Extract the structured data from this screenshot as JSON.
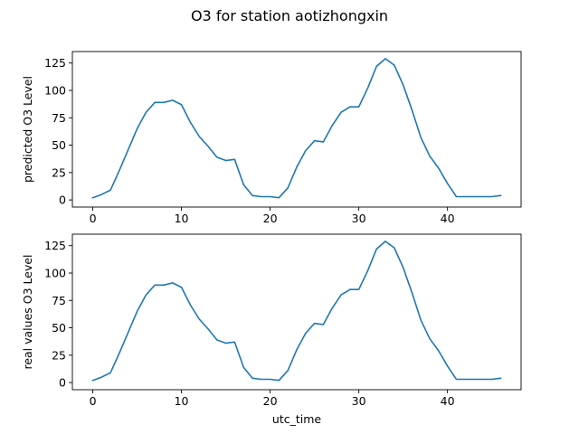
{
  "figure_title": "O3 for station aotizhongxin",
  "chart_data": [
    {
      "type": "line",
      "title": "",
      "xlabel": "",
      "ylabel": "predicted O3 Level",
      "xlim": [
        -2.3,
        48.3
      ],
      "ylim": [
        -6.5,
        135.5
      ],
      "xticks": [
        0,
        10,
        20,
        30,
        40
      ],
      "yticks": [
        0,
        25,
        50,
        75,
        100,
        125
      ],
      "grid": false,
      "line_color": "#1f77b4",
      "series": [
        {
          "x": [
            0,
            1,
            2,
            3,
            4,
            5,
            6,
            7,
            8,
            9,
            10,
            11,
            12,
            13,
            14,
            15,
            16,
            17,
            18,
            19,
            20,
            21,
            22,
            23,
            24,
            25,
            26,
            27,
            28,
            29,
            30,
            31,
            32,
            33,
            34,
            35,
            36,
            37,
            38,
            39,
            40,
            41,
            42,
            43,
            44,
            45,
            46
          ],
          "values": [
            2,
            5,
            9,
            27,
            46,
            65,
            80,
            89,
            89,
            91,
            87,
            71,
            58,
            49,
            39,
            36,
            37,
            14,
            4,
            3,
            3,
            2,
            11,
            30,
            45,
            54,
            53,
            68,
            80,
            85,
            85,
            102,
            122,
            129,
            123,
            105,
            82,
            57,
            40,
            29,
            15,
            3,
            3,
            3,
            3,
            3,
            4
          ]
        }
      ]
    },
    {
      "type": "line",
      "title": "",
      "xlabel": "utc_time",
      "ylabel": "real values O3 Level",
      "xlim": [
        -2.3,
        48.3
      ],
      "ylim": [
        -6.5,
        135.5
      ],
      "xticks": [
        0,
        10,
        20,
        30,
        40
      ],
      "yticks": [
        0,
        25,
        50,
        75,
        100,
        125
      ],
      "grid": false,
      "line_color": "#1f77b4",
      "series": [
        {
          "x": [
            0,
            1,
            2,
            3,
            4,
            5,
            6,
            7,
            8,
            9,
            10,
            11,
            12,
            13,
            14,
            15,
            16,
            17,
            18,
            19,
            20,
            21,
            22,
            23,
            24,
            25,
            26,
            27,
            28,
            29,
            30,
            31,
            32,
            33,
            34,
            35,
            36,
            37,
            38,
            39,
            40,
            41,
            42,
            43,
            44,
            45,
            46
          ],
          "values": [
            2,
            5,
            9,
            27,
            46,
            65,
            80,
            89,
            89,
            91,
            87,
            71,
            58,
            49,
            39,
            36,
            37,
            14,
            4,
            3,
            3,
            2,
            11,
            30,
            45,
            54,
            53,
            68,
            80,
            85,
            85,
            102,
            122,
            129,
            123,
            105,
            82,
            57,
            40,
            29,
            15,
            3,
            3,
            3,
            3,
            3,
            4
          ]
        }
      ]
    }
  ]
}
